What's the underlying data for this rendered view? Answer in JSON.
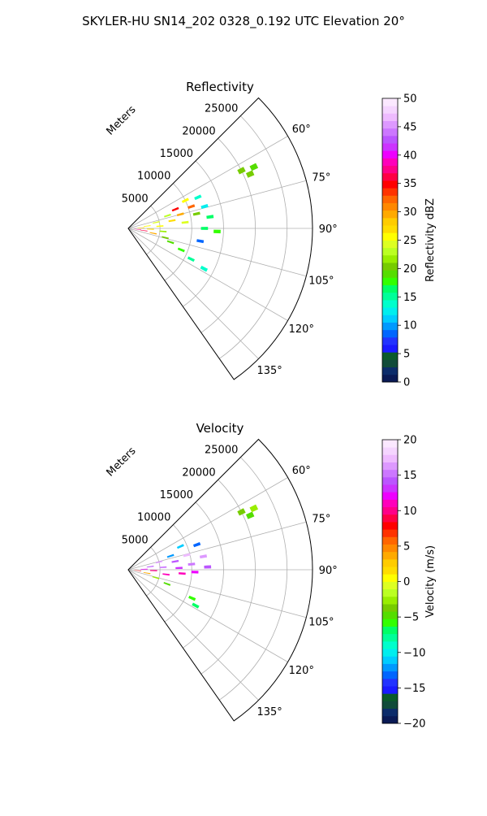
{
  "title": "SKYLER-HU  SN14_202  0328_0.192 UTC Elevation 20°",
  "colors": {
    "grid": "#b0b0b0",
    "frame": "#000000",
    "background": "#ffffff"
  },
  "chart_data": [
    {
      "type": "polar_sector",
      "title": "Reflectivity",
      "radial_label": "Meters",
      "r_ticks": [
        5000,
        10000,
        15000,
        20000,
        25000
      ],
      "r_tick_labels": [
        "5000",
        "10000",
        "15000",
        "20000",
        "25000"
      ],
      "r_max": 29000,
      "theta_range_deg": [
        45,
        145
      ],
      "theta_ticks_deg": [
        60,
        75,
        90,
        105,
        120,
        135
      ],
      "theta_tick_labels": [
        "60°",
        "75°",
        "90°",
        "105°",
        "120°",
        "135°"
      ],
      "grid": true,
      "colorbar": {
        "label": "Reflectivity dBZ",
        "min": 0,
        "max": 50,
        "ticks": [
          0,
          5,
          10,
          15,
          20,
          25,
          30,
          35,
          40,
          45,
          50
        ],
        "tick_labels": [
          "0",
          "5",
          "10",
          "15",
          "20",
          "25",
          "30",
          "35",
          "40",
          "45",
          "50"
        ],
        "colors": [
          "#0a1a55",
          "#0c2c6a",
          "#114b3a",
          "#0b5a2a",
          "#1a1aff",
          "#2233ff",
          "#0066ff",
          "#0099ff",
          "#00ccff",
          "#00eeee",
          "#00ffcc",
          "#00ff99",
          "#00ff66",
          "#33ff00",
          "#55dd00",
          "#77cc00",
          "#99ee00",
          "#bbff22",
          "#ddff22",
          "#ffff00",
          "#ffdd00",
          "#ffcc00",
          "#ffaa00",
          "#ff8800",
          "#ff6600",
          "#ff3300",
          "#ff0000",
          "#ff0044",
          "#ff0088",
          "#ff00bb",
          "#ee00ff",
          "#cc33ff",
          "#bb55ff",
          "#cc77ff",
          "#dd99ff",
          "#eebbff",
          "#f5d5ff",
          "#fbe8ff"
        ]
      },
      "gates": [
        {
          "range": 1500,
          "azimuth": 96,
          "value": 38
        },
        {
          "range": 2500,
          "azimuth": 98,
          "value": 36
        },
        {
          "range": 2000,
          "azimuth": 88,
          "value": 28
        },
        {
          "range": 3000,
          "azimuth": 83,
          "value": 25
        },
        {
          "range": 3500,
          "azimuth": 92,
          "value": 27
        },
        {
          "range": 4000,
          "azimuth": 101,
          "value": 30
        },
        {
          "range": 4500,
          "azimuth": 78,
          "value": 24
        },
        {
          "range": 5000,
          "azimuth": 86,
          "value": 26
        },
        {
          "range": 5500,
          "azimuth": 95,
          "value": 22
        },
        {
          "range": 6000,
          "azimuth": 104,
          "value": 21
        },
        {
          "range": 6500,
          "azimuth": 72,
          "value": 23
        },
        {
          "range": 7000,
          "azimuth": 80,
          "value": 27
        },
        {
          "range": 7000,
          "azimuth": 108,
          "value": 19
        },
        {
          "range": 8000,
          "azimuth": 68,
          "value": 35
        },
        {
          "range": 8500,
          "azimuth": 75,
          "value": 29
        },
        {
          "range": 9000,
          "azimuth": 84,
          "value": 24
        },
        {
          "range": 9000,
          "azimuth": 112,
          "value": 18
        },
        {
          "range": 10000,
          "azimuth": 64,
          "value": 25
        },
        {
          "range": 10500,
          "azimuth": 71,
          "value": 32
        },
        {
          "range": 11000,
          "azimuth": 78,
          "value": 20
        },
        {
          "range": 11000,
          "azimuth": 116,
          "value": 15
        },
        {
          "range": 12000,
          "azimuth": 66,
          "value": 14
        },
        {
          "range": 12500,
          "azimuth": 74,
          "value": 12
        },
        {
          "range": 13000,
          "azimuth": 82,
          "value": 16
        },
        {
          "range": 12000,
          "azimuth": 90,
          "value": 17
        },
        {
          "range": 13500,
          "azimuth": 118,
          "value": 14
        },
        {
          "range": 11500,
          "azimuth": 100,
          "value": 9
        },
        {
          "range": 14000,
          "azimuth": 92,
          "value": 18
        },
        {
          "range": 20000,
          "azimuth": 63,
          "value": 20
        },
        {
          "range": 21000,
          "azimuth": 66,
          "value": 21
        },
        {
          "range": 22000,
          "azimuth": 64,
          "value": 19
        }
      ]
    },
    {
      "type": "polar_sector",
      "title": "Velocity",
      "radial_label": "Meters",
      "r_ticks": [
        5000,
        10000,
        15000,
        20000,
        25000
      ],
      "r_tick_labels": [
        "5000",
        "10000",
        "15000",
        "20000",
        "25000"
      ],
      "r_max": 29000,
      "theta_range_deg": [
        45,
        145
      ],
      "theta_ticks_deg": [
        60,
        75,
        90,
        105,
        120,
        135
      ],
      "theta_tick_labels": [
        "60°",
        "75°",
        "90°",
        "105°",
        "120°",
        "135°"
      ],
      "grid": true,
      "colorbar": {
        "label": "Velocity (m/s)",
        "min": -20,
        "max": 20,
        "ticks": [
          -20,
          -15,
          -10,
          -5,
          0,
          5,
          10,
          15,
          20
        ],
        "tick_labels": [
          "−20",
          "−15",
          "−10",
          "−5",
          "0",
          "5",
          "10",
          "15",
          "20"
        ],
        "colors": [
          "#0a1a55",
          "#0c2c6a",
          "#114b3a",
          "#0b5a2a",
          "#1a1aff",
          "#2233ff",
          "#0066ff",
          "#0099ff",
          "#00ccff",
          "#00eeee",
          "#00ffcc",
          "#00ff99",
          "#00ff66",
          "#33ff00",
          "#55dd00",
          "#77cc00",
          "#99ee00",
          "#bbff22",
          "#ddff22",
          "#ffff00",
          "#ffdd00",
          "#ffcc00",
          "#ffaa00",
          "#ff8800",
          "#ff6600",
          "#ff3300",
          "#ff0000",
          "#ff0044",
          "#ff0088",
          "#ff00bb",
          "#ee00ff",
          "#cc33ff",
          "#bb55ff",
          "#cc77ff",
          "#dd99ff",
          "#eebbff",
          "#f5d5ff",
          "#fbe8ff"
        ]
      },
      "gates": [
        {
          "range": 1500,
          "azimuth": 95,
          "value": 8
        },
        {
          "range": 2500,
          "azimuth": 88,
          "value": 12
        },
        {
          "range": 3000,
          "azimuth": 100,
          "value": 4
        },
        {
          "range": 3500,
          "azimuth": 82,
          "value": 14
        },
        {
          "range": 4000,
          "azimuth": 92,
          "value": 10
        },
        {
          "range": 4500,
          "azimuth": 106,
          "value": -3
        },
        {
          "range": 5000,
          "azimuth": 76,
          "value": 16
        },
        {
          "range": 5500,
          "azimuth": 86,
          "value": 15
        },
        {
          "range": 6000,
          "azimuth": 97,
          "value": 11
        },
        {
          "range": 6500,
          "azimuth": 110,
          "value": -5
        },
        {
          "range": 7000,
          "azimuth": 72,
          "value": -12
        },
        {
          "range": 7500,
          "azimuth": 80,
          "value": 14
        },
        {
          "range": 8000,
          "azimuth": 88,
          "value": 13
        },
        {
          "range": 8500,
          "azimuth": 94,
          "value": 11
        },
        {
          "range": 9000,
          "azimuth": 66,
          "value": -11
        },
        {
          "range": 9500,
          "azimuth": 76,
          "value": 17
        },
        {
          "range": 10000,
          "azimuth": 85,
          "value": 15
        },
        {
          "range": 10500,
          "azimuth": 92,
          "value": 12
        },
        {
          "range": 11000,
          "azimuth": 114,
          "value": -6
        },
        {
          "range": 11500,
          "azimuth": 70,
          "value": -13
        },
        {
          "range": 12000,
          "azimuth": 80,
          "value": 16
        },
        {
          "range": 12500,
          "azimuth": 88,
          "value": 14
        },
        {
          "range": 12000,
          "azimuth": 118,
          "value": -7
        },
        {
          "range": 20000,
          "azimuth": 63,
          "value": -4
        },
        {
          "range": 21000,
          "azimuth": 66,
          "value": -5
        },
        {
          "range": 22000,
          "azimuth": 64,
          "value": -3
        }
      ]
    }
  ]
}
